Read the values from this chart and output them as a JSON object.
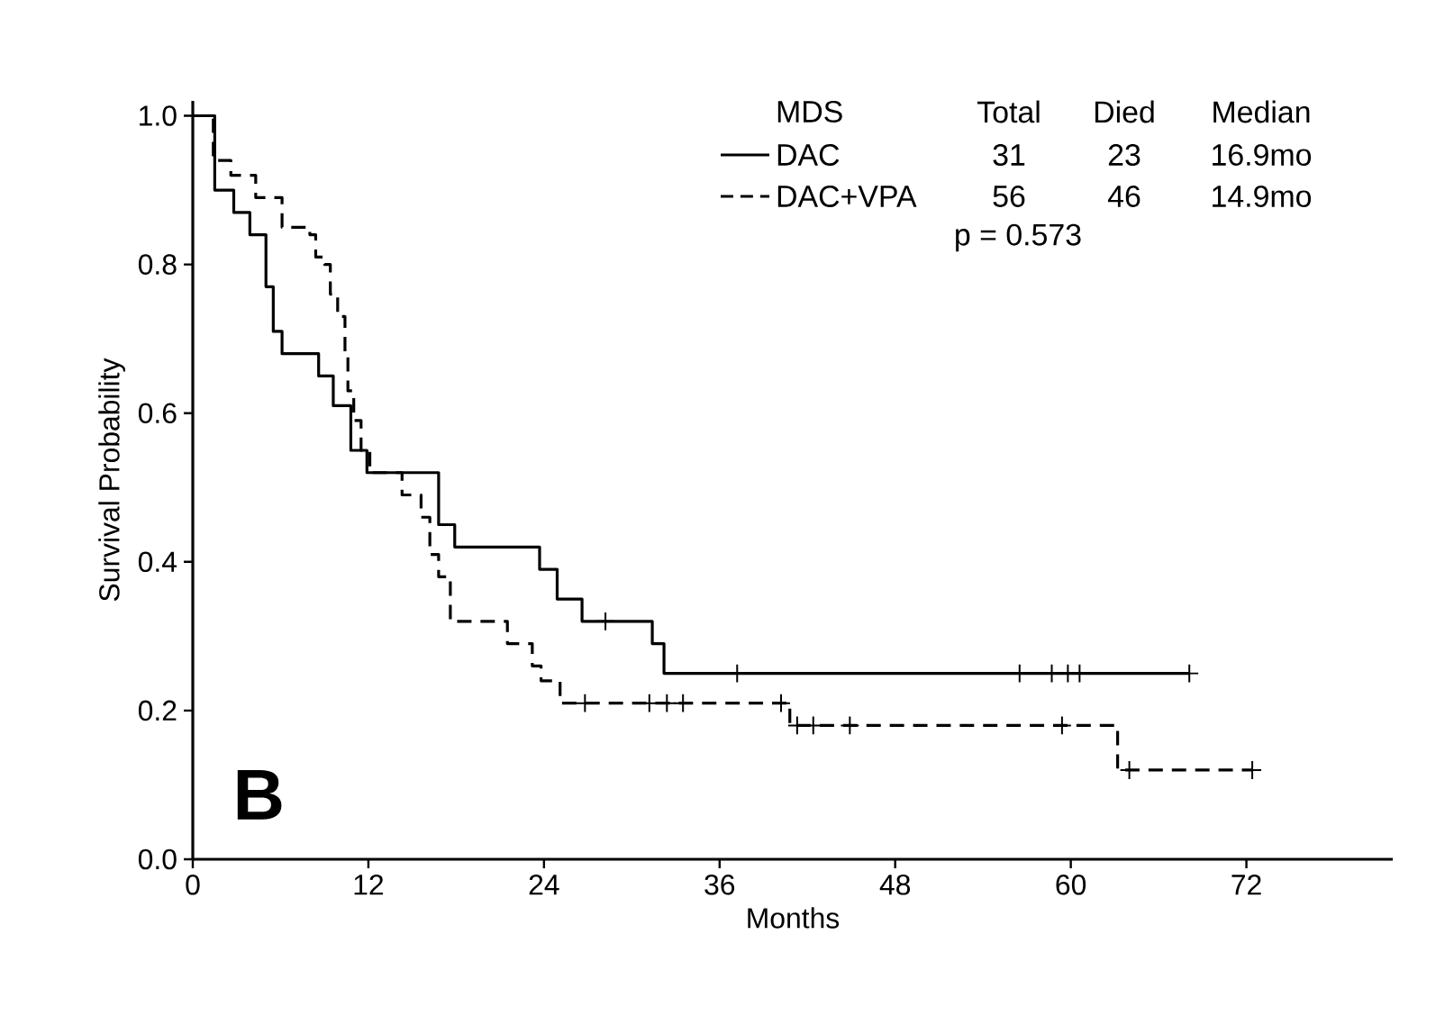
{
  "chart_data": {
    "type": "step",
    "xlabel": "Months",
    "ylabel": "Survival Probability",
    "legend_title": "MDS",
    "legend": "top right",
    "xlim": [
      0,
      82
    ],
    "xticks": [
      0,
      12,
      24,
      36,
      48,
      60,
      72
    ],
    "ylim": [
      0,
      1.02
    ],
    "yticks": [
      {
        "value": 0,
        "label": "0.0"
      },
      {
        "value": 0.2,
        "label": "0.2"
      },
      {
        "value": 0.4,
        "label": "0.4"
      },
      {
        "value": 0.6,
        "label": "0.6"
      },
      {
        "value": 0.8,
        "label": "0.8"
      },
      {
        "value": 1.0,
        "label": "1.0"
      }
    ],
    "annotations": [
      "Total",
      "Died",
      "Median",
      "31",
      "23",
      "16.9mo",
      "56",
      "46",
      "14.9mo",
      "p = 0.573",
      "B"
    ],
    "series": [
      {
        "name": "DAC",
        "color": "#000000",
        "line_style": "solid",
        "marker": "none",
        "x": [
          0,
          1.5,
          2.8,
          3.9,
          5.0,
          5.5,
          6.1,
          8.6,
          9.6,
          10.8,
          11.9,
          16.8,
          17.9,
          23.7,
          24.9,
          26.6,
          31.4,
          32.2,
          68.1
        ],
        "values": [
          1.0,
          0.9,
          0.87,
          0.84,
          0.77,
          0.71,
          0.68,
          0.65,
          0.61,
          0.55,
          0.52,
          0.45,
          0.42,
          0.39,
          0.35,
          0.32,
          0.29,
          0.25,
          0.25
        ]
      },
      {
        "name": "DAC+VPA",
        "color": "#000000",
        "line_style": "dashed",
        "marker": "none",
        "x": [
          0,
          1.4,
          2.6,
          4.3,
          6.1,
          8.0,
          8.4,
          9.0,
          9.4,
          9.9,
          10.4,
          10.6,
          11.0,
          11.5,
          12.1,
          14.3,
          15.6,
          16.2,
          16.8,
          17.6,
          21.5,
          23.2,
          23.8,
          25.1,
          40.8,
          63.2,
          72.4
        ],
        "values": [
          1.0,
          0.94,
          0.92,
          0.89,
          0.85,
          0.84,
          0.81,
          0.8,
          0.76,
          0.73,
          0.68,
          0.63,
          0.59,
          0.55,
          0.52,
          0.49,
          0.46,
          0.41,
          0.38,
          0.32,
          0.29,
          0.26,
          0.24,
          0.21,
          0.18,
          0.12,
          0.12
        ]
      },
      {
        "type": "scatter",
        "color": "#000000",
        "marker": "cross",
        "x": [
          28.2,
          37.2,
          56.5,
          58.7,
          59.8,
          60.6,
          68.1
        ],
        "values": [
          0.32,
          0.25,
          0.25,
          0.25,
          0.25,
          0.25,
          0.25
        ]
      },
      {
        "type": "scatter",
        "color": "#000000",
        "marker": "cross",
        "x": [
          26.8,
          31.2,
          32.4,
          33.5,
          40.2,
          41.3,
          42.4,
          44.9,
          59.4,
          64.0,
          72.4
        ],
        "values": [
          0.21,
          0.21,
          0.21,
          0.21,
          0.21,
          0.18,
          0.18,
          0.18,
          0.18,
          0.12,
          0.12
        ]
      }
    ]
  }
}
